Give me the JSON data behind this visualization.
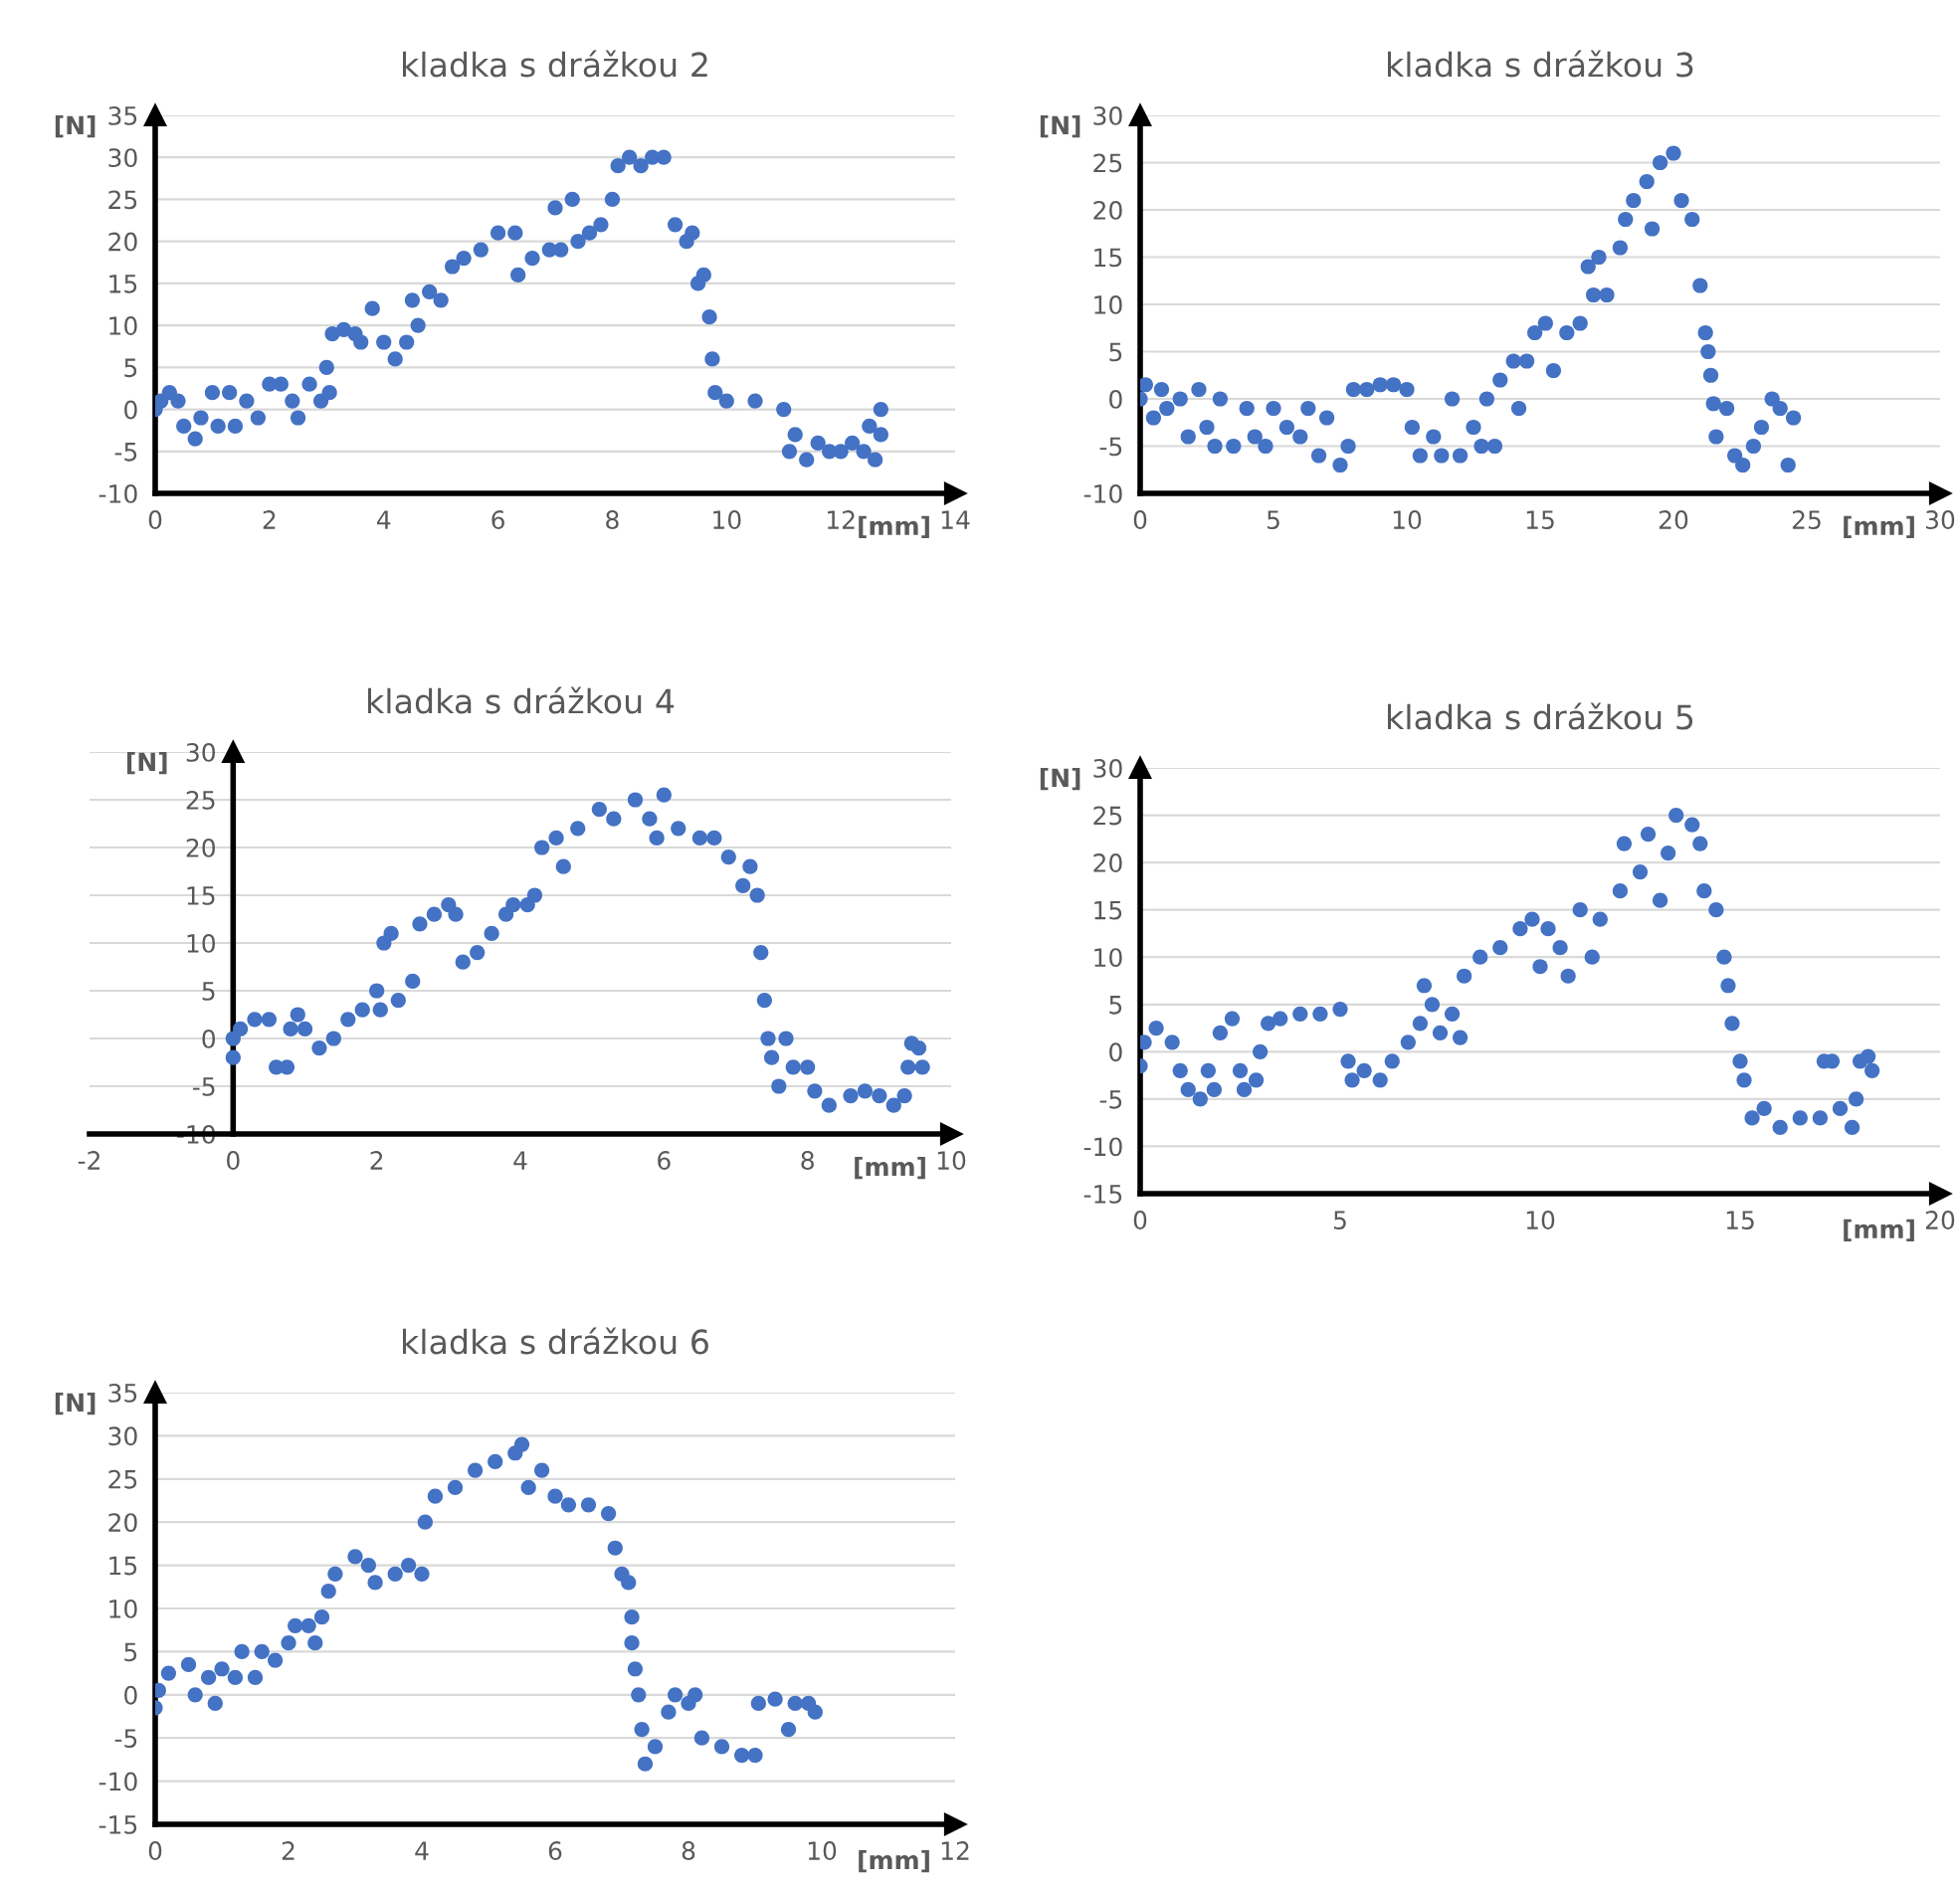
{
  "chart_data": [
    {
      "type": "scatter",
      "title": "kladka s drážkou 2",
      "xlabel": "[mm]",
      "ylabel": "[N]",
      "xlim": [
        0,
        14
      ],
      "ylim": [
        -10,
        35
      ],
      "xticks": [
        0,
        2,
        4,
        6,
        8,
        10,
        12,
        14
      ],
      "yticks": [
        -10,
        -5,
        0,
        5,
        10,
        15,
        20,
        25,
        30,
        35
      ],
      "grid": "y",
      "marker": "circle",
      "series": [
        {
          "color": "#4472c4",
          "x": [
            0,
            0.1,
            0.25,
            0.4,
            0.5,
            0.7,
            0.8,
            1,
            1.1,
            1.3,
            1.4,
            1.6,
            1.8,
            2,
            2.2,
            2.4,
            2.5,
            2.7,
            2.9,
            3,
            3.05,
            3.1,
            3.3,
            3.5,
            3.6,
            3.8,
            4,
            4.2,
            4.4,
            4.5,
            4.6,
            4.8,
            5,
            5.2,
            5.4,
            5.7,
            6,
            6.3,
            6.35,
            6.6,
            6.9,
            7,
            7.1,
            7.3,
            7.4,
            7.6,
            7.8,
            8,
            8.1,
            8.3,
            8.5,
            8.7,
            8.9,
            9.1,
            9.3,
            9.4,
            9.5,
            9.6,
            9.7,
            9.75,
            9.8,
            10,
            10.5,
            11,
            11.1,
            11.2,
            11.4,
            11.6,
            11.8,
            12,
            12.2,
            12.4,
            12.5,
            12.6,
            12.7,
            12.7
          ],
          "values": [
            0,
            1,
            2,
            1,
            -2,
            -3.5,
            -1,
            2,
            -2,
            2,
            -2,
            1,
            -1,
            3,
            3,
            1,
            -1,
            3,
            1,
            5,
            2,
            9,
            9.5,
            9,
            8,
            12,
            8,
            6,
            8,
            13,
            10,
            14,
            13,
            17,
            18,
            19,
            21,
            21,
            16,
            18,
            19,
            24,
            19,
            25,
            20,
            21,
            22,
            25,
            29,
            30,
            29,
            30,
            30,
            22,
            20,
            21,
            15,
            16,
            11,
            6,
            2,
            1,
            1,
            0,
            -5,
            -3,
            -6,
            -4,
            -5,
            -5,
            -4,
            -5,
            -2,
            -6,
            0,
            -3
          ]
        }
      ]
    },
    {
      "type": "scatter",
      "title": "kladka s drážkou 3",
      "xlabel": "[mm]",
      "ylabel": "[N]",
      "xlim": [
        0,
        30
      ],
      "ylim": [
        -10,
        30
      ],
      "xticks": [
        0,
        5,
        10,
        15,
        20,
        25,
        30
      ],
      "yticks": [
        -10,
        -5,
        0,
        5,
        10,
        15,
        20,
        25,
        30
      ],
      "grid": "y",
      "marker": "circle",
      "series": [
        {
          "color": "#4472c4",
          "x": [
            0,
            0.2,
            0.5,
            0.8,
            1,
            1.5,
            1.8,
            2.2,
            2.5,
            2.8,
            3,
            3.5,
            4,
            4.3,
            4.7,
            5,
            5.5,
            6,
            6.3,
            6.7,
            7,
            7.5,
            7.8,
            8,
            8.5,
            9,
            9.5,
            10,
            10.2,
            10.5,
            11,
            11.3,
            11.7,
            12,
            12.5,
            12.8,
            13,
            13.3,
            13.5,
            14,
            14.2,
            14.5,
            14.8,
            15.2,
            15.5,
            16,
            16.5,
            16.8,
            17,
            17.2,
            17.5,
            18,
            18.2,
            18.5,
            19,
            19.2,
            19.5,
            20,
            20.3,
            20.7,
            21,
            21.2,
            21.3,
            21.4,
            21.5,
            21.6,
            22,
            22.3,
            22.6,
            23,
            23.3,
            23.7,
            24,
            24.3,
            24.5
          ],
          "values": [
            0,
            1.5,
            -2,
            1,
            -1,
            0,
            -4,
            1,
            -3,
            -5,
            0,
            -5,
            -1,
            -4,
            -5,
            -1,
            -3,
            -4,
            -1,
            -6,
            -2,
            -7,
            -5,
            1,
            1,
            1.5,
            1.5,
            1,
            -3,
            -6,
            -4,
            -6,
            0,
            -6,
            -3,
            -5,
            0,
            -5,
            2,
            4,
            -1,
            4,
            7,
            8,
            3,
            7,
            8,
            14,
            11,
            15,
            11,
            16,
            19,
            21,
            23,
            18,
            25,
            26,
            21,
            19,
            12,
            7,
            5,
            2.5,
            -0.5,
            -4,
            -1,
            -6,
            -7,
            -5,
            -3,
            0,
            -1,
            -7,
            -2
          ]
        }
      ]
    },
    {
      "type": "scatter",
      "title": "kladka s drážkou 4",
      "xlabel": "[mm]",
      "ylabel": "[N]",
      "xlim": [
        -2,
        10
      ],
      "ylim": [
        -10,
        30
      ],
      "xticks": [
        -2,
        0,
        2,
        4,
        6,
        8,
        10
      ],
      "yticks": [
        -10,
        -5,
        0,
        5,
        10,
        15,
        20,
        25,
        30
      ],
      "grid": "y",
      "marker": "circle",
      "series": [
        {
          "color": "#4472c4",
          "x": [
            0,
            0,
            0.1,
            0.3,
            0.5,
            0.6,
            0.75,
            0.8,
            0.9,
            1,
            1.2,
            1.4,
            1.6,
            1.8,
            2,
            2.05,
            2.1,
            2.2,
            2.3,
            2.5,
            2.6,
            2.8,
            3,
            3.1,
            3.2,
            3.4,
            3.6,
            3.8,
            3.9,
            4.1,
            4.2,
            4.3,
            4.5,
            4.6,
            4.8,
            5.1,
            5.3,
            5.6,
            5.8,
            5.9,
            6,
            6.2,
            6.5,
            6.7,
            6.9,
            7.1,
            7.2,
            7.3,
            7.35,
            7.4,
            7.45,
            7.5,
            7.6,
            7.7,
            7.8,
            8,
            8.1,
            8.3,
            8.6,
            8.8,
            9,
            9.2,
            9.35,
            9.4,
            9.45,
            9.55,
            9.6
          ],
          "values": [
            -2,
            0,
            1,
            2,
            2,
            -3,
            -3,
            1,
            2.5,
            1,
            -1,
            0,
            2,
            3,
            5,
            3,
            10,
            11,
            4,
            6,
            12,
            13,
            14,
            13,
            8,
            9,
            11,
            13,
            14,
            14,
            15,
            20,
            21,
            18,
            22,
            24,
            23,
            25,
            23,
            21,
            25.5,
            22,
            21,
            21,
            19,
            16,
            18,
            15,
            9,
            4,
            0,
            -2,
            -5,
            0,
            -3,
            -3,
            -5.5,
            -7,
            -6,
            -5.5,
            -6,
            -7,
            -6,
            -3,
            -0.5,
            -1,
            -3
          ]
        }
      ]
    },
    {
      "type": "scatter",
      "title": "kladka s drážkou 5",
      "xlabel": "[mm]",
      "ylabel": "[N]",
      "xlim": [
        0,
        20
      ],
      "ylim": [
        -15,
        30
      ],
      "xticks": [
        0,
        5,
        10,
        15,
        20
      ],
      "yticks": [
        -15,
        -10,
        -5,
        0,
        5,
        10,
        15,
        20,
        25,
        30
      ],
      "grid": "y",
      "marker": "circle",
      "series": [
        {
          "color": "#4472c4",
          "x": [
            0,
            0.1,
            0.4,
            0.8,
            1,
            1.2,
            1.5,
            1.7,
            1.85,
            2,
            2.3,
            2.5,
            2.6,
            2.9,
            3,
            3.2,
            3.5,
            4,
            4.5,
            5,
            5.2,
            5.3,
            5.6,
            6,
            6.3,
            6.7,
            7,
            7.1,
            7.3,
            7.5,
            7.8,
            8,
            8.1,
            8.5,
            9,
            9.5,
            9.8,
            10,
            10.2,
            10.5,
            10.7,
            11,
            11.3,
            11.5,
            12,
            12.1,
            12.5,
            12.7,
            13,
            13.2,
            13.4,
            13.8,
            14,
            14.1,
            14.4,
            14.6,
            14.7,
            14.8,
            15,
            15.1,
            15.3,
            15.6,
            16,
            16.5,
            17,
            17.1,
            17.3,
            17.5,
            17.8,
            17.9,
            18,
            18.2,
            18.3
          ],
          "values": [
            -1.5,
            1,
            2.5,
            1,
            -2,
            -4,
            -5,
            -2,
            -4,
            2,
            3.5,
            -2,
            -4,
            -3,
            0,
            3,
            3.5,
            4,
            4,
            4.5,
            -1,
            -3,
            -2,
            -3,
            -1,
            1,
            3,
            7,
            5,
            2,
            4,
            1.5,
            8,
            10,
            11,
            13,
            14,
            9,
            13,
            11,
            8,
            15,
            10,
            14,
            17,
            22,
            19,
            23,
            16,
            21,
            25,
            24,
            22,
            17,
            15,
            10,
            7,
            3,
            -1,
            -3,
            -7,
            -6,
            -8,
            -7,
            -7,
            -1,
            -1,
            -6,
            -8,
            -5,
            -1,
            -0.5,
            -2
          ]
        }
      ]
    },
    {
      "type": "scatter",
      "title": "kladka s drážkou 6",
      "xlabel": "[mm]",
      "ylabel": "[N]",
      "xlim": [
        0,
        12
      ],
      "ylim": [
        -15,
        35
      ],
      "xticks": [
        0,
        2,
        4,
        6,
        8,
        10,
        12
      ],
      "yticks": [
        -15,
        -10,
        -5,
        0,
        5,
        10,
        15,
        20,
        25,
        30,
        35
      ],
      "grid": "y",
      "marker": "circle",
      "series": [
        {
          "color": "#4472c4",
          "x": [
            0,
            0.05,
            0.2,
            0.5,
            0.6,
            0.8,
            0.9,
            1,
            1.2,
            1.3,
            1.5,
            1.6,
            1.8,
            2,
            2.1,
            2.3,
            2.4,
            2.5,
            2.6,
            2.7,
            3,
            3.2,
            3.3,
            3.6,
            3.8,
            4,
            4.05,
            4.2,
            4.5,
            4.8,
            5.1,
            5.4,
            5.5,
            5.6,
            5.8,
            6,
            6.2,
            6.5,
            6.8,
            6.9,
            7,
            7.1,
            7.15,
            7.15,
            7.2,
            7.25,
            7.3,
            7.35,
            7.5,
            7.7,
            7.8,
            8,
            8.1,
            8.2,
            8.5,
            8.8,
            9,
            9.05,
            9.3,
            9.5,
            9.6,
            9.8,
            9.9
          ],
          "values": [
            -1.5,
            0.5,
            2.5,
            3.5,
            0,
            2,
            -1,
            3,
            2,
            5,
            2,
            5,
            4,
            6,
            8,
            8,
            6,
            9,
            12,
            14,
            16,
            15,
            13,
            14,
            15,
            14,
            20,
            23,
            24,
            26,
            27,
            28,
            29,
            24,
            26,
            23,
            22,
            22,
            21,
            17,
            14,
            13,
            9,
            6,
            3,
            0,
            -4,
            -8,
            -6,
            -2,
            0,
            -1,
            0,
            -5,
            -6,
            -7,
            -7,
            -1,
            -0.5,
            -4,
            -1,
            -1,
            -2
          ]
        }
      ]
    }
  ]
}
